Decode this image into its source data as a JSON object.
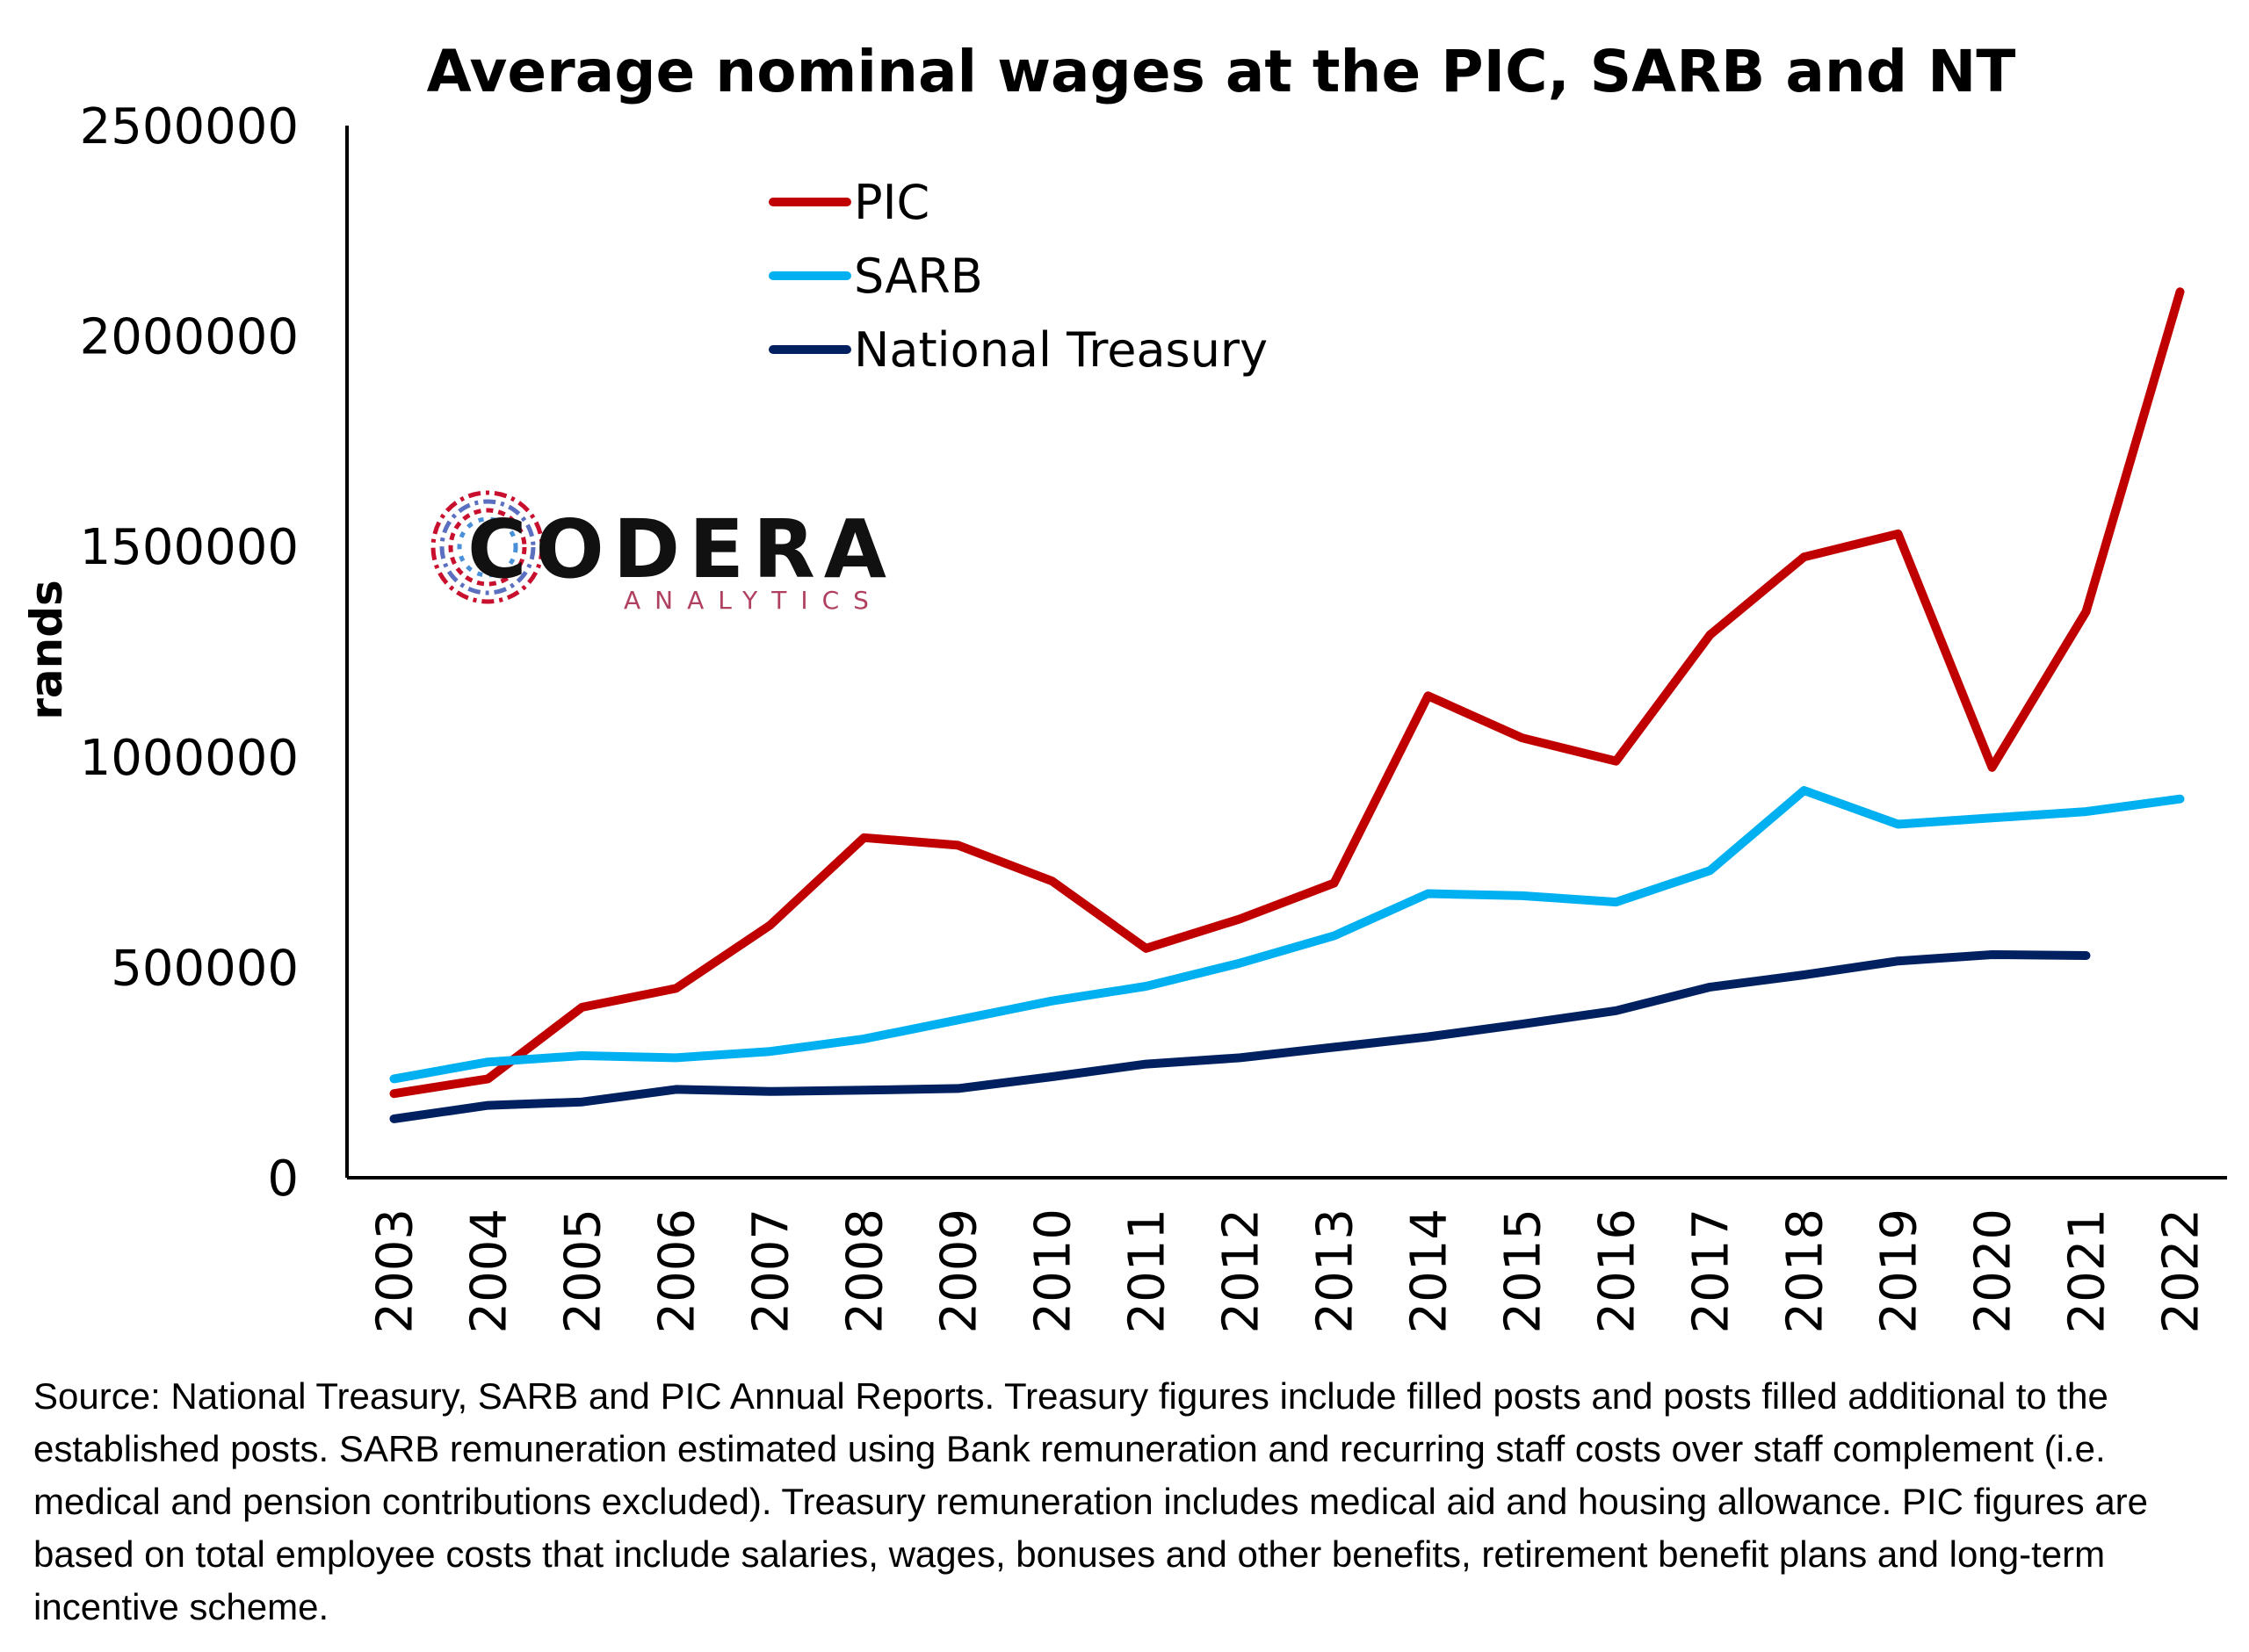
{
  "chart_data": {
    "type": "line",
    "title": "Average nominal wages at the PIC, SARB and NT",
    "xlabel": "",
    "ylabel": "rands",
    "x": [
      "2003",
      "2004",
      "2005",
      "2006",
      "2007",
      "2008",
      "2009",
      "2010",
      "2011",
      "2012",
      "2013",
      "2014",
      "2015",
      "2016",
      "2017",
      "2018",
      "2019",
      "2020",
      "2021",
      "2022"
    ],
    "ylim": [
      0,
      2500000
    ],
    "yticks": [
      "0",
      "500000",
      "1000000",
      "1500000",
      "2000000",
      "2500000"
    ],
    "grid": false,
    "legend_position": "top-center",
    "series": [
      {
        "name": "PIC",
        "color": "#c00000",
        "values": [
          200000,
          235000,
          405000,
          450000,
          600000,
          808000,
          790000,
          705000,
          545000,
          615000,
          700000,
          1145000,
          1045000,
          990000,
          1290000,
          1475000,
          1530000,
          975000,
          1345000,
          2105000
        ]
      },
      {
        "name": "SARB",
        "color": "#00b0f0",
        "values": [
          235000,
          275000,
          290000,
          285000,
          300000,
          330000,
          375000,
          420000,
          455000,
          510000,
          575000,
          675000,
          670000,
          655000,
          730000,
          920000,
          840000,
          855000,
          870000,
          900000
        ]
      },
      {
        "name": "National Treasury",
        "color": "#002060",
        "values": [
          140000,
          172000,
          180000,
          210000,
          205000,
          208000,
          212000,
          240000,
          270000,
          285000,
          310000,
          335000,
          365000,
          397000,
          453000,
          482000,
          515000,
          530000,
          528000,
          null
        ]
      }
    ]
  },
  "logo": {
    "name": "CODERA",
    "subtitle": "ANALYTICS"
  },
  "source_note": "Source: National Treasury, SARB and PIC Annual Reports. Treasury figures include filled posts and posts filled additional to the established posts. SARB remuneration estimated using Bank remuneration and recurring staff costs over staff complement (i.e. medical and pension contributions excluded). Treasury remuneration includes medical aid and housing allowance. PIC figures are based on total employee costs that include salaries, wages, bonuses and other benefits, retirement benefit plans and long-term incentive scheme."
}
